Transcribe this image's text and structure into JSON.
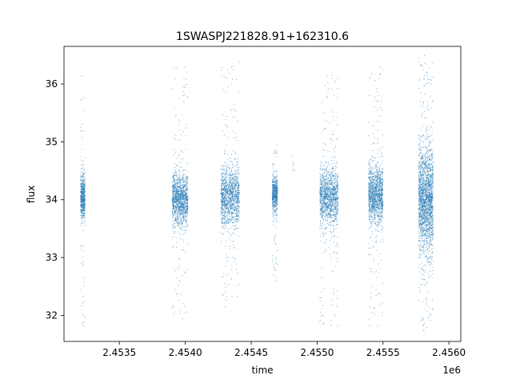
{
  "colors": {
    "points": "#1f77b4",
    "axes": "#000000",
    "background": "#ffffff"
  },
  "chart_data": {
    "type": "scatter",
    "title": "1SWASPJ221828.91+162310.6",
    "xlabel": "time",
    "ylabel": "flux",
    "x_offset_label": "1e6",
    "xlim": [
      2453080,
      2456090
    ],
    "ylim": [
      31.55,
      36.65
    ],
    "x_ticks": [
      2453500,
      2454000,
      2454500,
      2455000,
      2455500,
      2456000
    ],
    "x_tick_labels": [
      "2.4535",
      "2.4540",
      "2.4545",
      "2.4550",
      "2.4555",
      "2.4560"
    ],
    "y_ticks": [
      32,
      33,
      34,
      35,
      36
    ],
    "y_tick_labels": [
      "32",
      "33",
      "34",
      "35",
      "36"
    ],
    "grid": false,
    "marker": "tiny dots",
    "series": [
      {
        "observing_seasons": [
          {
            "x_range": [
              2453205,
              2453240
            ],
            "y_median": 34.05,
            "y_core_spread": 0.4,
            "y_range": [
              31.8,
              36.2
            ],
            "density": "medium"
          },
          {
            "x_range": [
              2453900,
              2454020
            ],
            "y_median": 34.0,
            "y_core_spread": 0.45,
            "y_range": [
              31.9,
              36.3
            ],
            "density": "high"
          },
          {
            "x_range": [
              2454270,
              2454410
            ],
            "y_median": 34.05,
            "y_core_spread": 0.5,
            "y_range": [
              32.1,
              36.4
            ],
            "density": "high"
          },
          {
            "x_range": [
              2454660,
              2454700
            ],
            "y_median": 34.1,
            "y_core_spread": 0.3,
            "y_range": [
              32.6,
              35.0
            ],
            "density": "medium"
          },
          {
            "x_range": [
              2454810,
              2454830
            ],
            "y_median": 34.6,
            "y_core_spread": 0.15,
            "y_range": [
              34.4,
              34.8
            ],
            "density": "very low"
          },
          {
            "x_range": [
              2455020,
              2455160
            ],
            "y_median": 34.05,
            "y_core_spread": 0.5,
            "y_range": [
              31.8,
              36.2
            ],
            "density": "high"
          },
          {
            "x_range": [
              2455390,
              2455500
            ],
            "y_median": 34.1,
            "y_core_spread": 0.5,
            "y_range": [
              31.8,
              36.3
            ],
            "density": "high"
          },
          {
            "x_range": [
              2455770,
              2455880
            ],
            "y_median": 34.0,
            "y_core_spread": 0.9,
            "y_range": [
              31.7,
              36.5
            ],
            "density": "very high"
          }
        ]
      }
    ]
  }
}
